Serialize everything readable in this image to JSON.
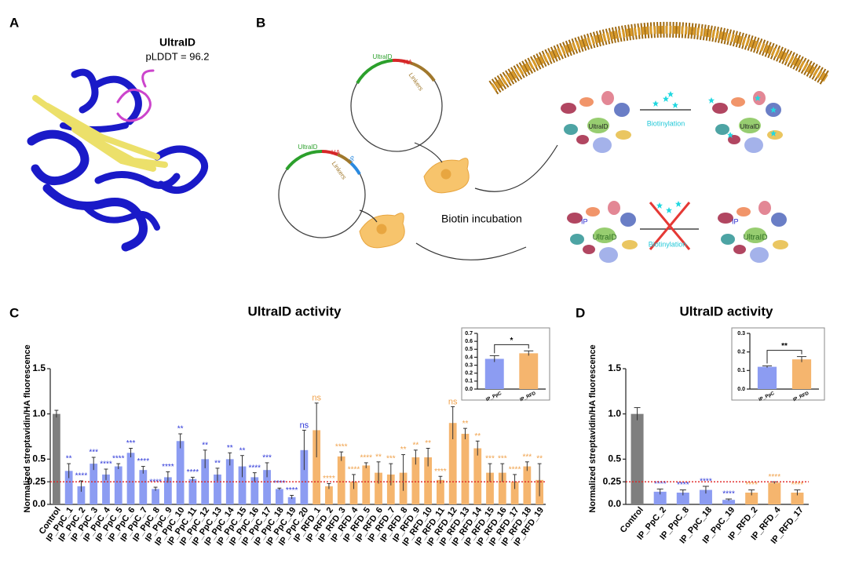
{
  "panels": {
    "A": {
      "letter": "A",
      "protein": "UltraID",
      "plddt": "pLDDT = 96.2"
    },
    "B": {
      "letter": "B",
      "plasmid1": {
        "gene": "UltraID",
        "tag": "HA",
        "linker": "Linkers"
      },
      "plasmid2": {
        "gene": "UltraID",
        "tag": "HA",
        "linker": "Linkers",
        "ip": "IP"
      },
      "incubation": "Biotin incubation",
      "top": {
        "label": "Biotinylation",
        "bait": "UltraID",
        "bait_after": "UltraID"
      },
      "bottom": {
        "label": "Biotinylation",
        "bait": "UltraID",
        "ip": "IP",
        "bait_after": "UltraID",
        "ip_after": "IP"
      }
    },
    "C": {
      "letter": "C"
    },
    "D": {
      "letter": "D"
    }
  },
  "chart_data": [
    {
      "type": "bar",
      "title": "UltraID activity",
      "y_label": "Normalized streptavidin/HA fluorescence",
      "categories": [
        "Control",
        "IP_PpC_1",
        "IP_PpC_2",
        "IP_PpC_3",
        "IP_PpC_4",
        "IP_PpC_5",
        "IP_PpC_6",
        "IP_PpC_7",
        "IP_PpC_8",
        "IP_PpC_9",
        "IP_PpC_10",
        "IP_PpC_11",
        "IP_PpC_12",
        "IP_PpC_13",
        "IP_PpC_14",
        "IP_PpC_15",
        "IP_PpC_16",
        "IP_PpC_17",
        "IP_PpC_18",
        "IP_PpC_19",
        "IP_PpC_20",
        "IP_RFD_1",
        "IP_RFD_2",
        "IP_RFD_3",
        "IP_RFD_4",
        "IP_RFD_5",
        "IP_RFD_6",
        "IP_RFD_7",
        "IP_RFD_8",
        "IP_RFD_9",
        "IP_RFD_10",
        "IP_RFD_11",
        "IP_RFD_12",
        "IP_RFD_13",
        "IP_RFD_14",
        "IP_RFD_15",
        "IP_RFD_16",
        "IP_RFD_17",
        "IP_RFD_18",
        "IP_RFD_19"
      ],
      "values": [
        1.0,
        0.37,
        0.2,
        0.45,
        0.33,
        0.42,
        0.57,
        0.38,
        0.17,
        0.3,
        0.7,
        0.28,
        0.5,
        0.33,
        0.5,
        0.42,
        0.3,
        0.38,
        0.17,
        0.08,
        0.6,
        0.82,
        0.2,
        0.53,
        0.25,
        0.43,
        0.35,
        0.33,
        0.35,
        0.52,
        0.52,
        0.27,
        0.9,
        0.78,
        0.62,
        0.35,
        0.35,
        0.25,
        0.42,
        0.27
      ],
      "errors": [
        0.04,
        0.08,
        0.06,
        0.07,
        0.06,
        0.03,
        0.05,
        0.04,
        0.02,
        0.06,
        0.08,
        0.02,
        0.1,
        0.07,
        0.07,
        0.12,
        0.05,
        0.08,
        0.01,
        0.02,
        0.22,
        0.3,
        0.03,
        0.05,
        0.08,
        0.03,
        0.12,
        0.12,
        0.2,
        0.08,
        0.1,
        0.04,
        0.18,
        0.06,
        0.08,
        0.1,
        0.1,
        0.08,
        0.05,
        0.18
      ],
      "annotations": [
        null,
        "**",
        "****",
        "***",
        "****",
        "****",
        "***",
        "****",
        "****",
        "****",
        "**",
        "****",
        "**",
        "**",
        "**",
        "**",
        "****",
        "***",
        "****",
        "****",
        "ns",
        "ns",
        "****",
        "****",
        "****",
        "****",
        "**",
        "***",
        "**",
        "**",
        "**",
        "****",
        "ns",
        "**",
        "**",
        "***",
        "***",
        "****",
        "***",
        "**"
      ],
      "colors": [
        "#7f7f7f",
        "#8c9cf2",
        "#8c9cf2",
        "#8c9cf2",
        "#8c9cf2",
        "#8c9cf2",
        "#8c9cf2",
        "#8c9cf2",
        "#8c9cf2",
        "#8c9cf2",
        "#8c9cf2",
        "#8c9cf2",
        "#8c9cf2",
        "#8c9cf2",
        "#8c9cf2",
        "#8c9cf2",
        "#8c9cf2",
        "#8c9cf2",
        "#8c9cf2",
        "#8c9cf2",
        "#8c9cf2",
        "#f5b56e",
        "#f5b56e",
        "#f5b56e",
        "#f5b56e",
        "#f5b56e",
        "#f5b56e",
        "#f5b56e",
        "#f5b56e",
        "#f5b56e",
        "#f5b56e",
        "#f5b56e",
        "#f5b56e",
        "#f5b56e",
        "#f5b56e",
        "#f5b56e",
        "#f5b56e",
        "#f5b56e",
        "#f5b56e",
        "#f5b56e"
      ],
      "annotation_colors": [
        null,
        "#2b35d8",
        "#2b35d8",
        "#2b35d8",
        "#2b35d8",
        "#2b35d8",
        "#2b35d8",
        "#2b35d8",
        "#2b35d8",
        "#2b35d8",
        "#2b35d8",
        "#2b35d8",
        "#2b35d8",
        "#2b35d8",
        "#2b35d8",
        "#2b35d8",
        "#2b35d8",
        "#2b35d8",
        "#2b35d8",
        "#2b35d8",
        "#2b35d8",
        "#f0a14a",
        "#f0a14a",
        "#f0a14a",
        "#f0a14a",
        "#f0a14a",
        "#f0a14a",
        "#f0a14a",
        "#f0a14a",
        "#f0a14a",
        "#f0a14a",
        "#f0a14a",
        "#f0a14a",
        "#f0a14a",
        "#f0a14a",
        "#f0a14a",
        "#f0a14a",
        "#f0a14a",
        "#f0a14a",
        "#f0a14a"
      ],
      "reference_line": {
        "value": 0.25,
        "color": "#e02020"
      },
      "ylim": [
        0,
        1.5
      ],
      "yticks": [
        {
          "value": 0,
          "label": "0.0"
        },
        0.25,
        0.5,
        {
          "value": 1,
          "label": "1.0"
        },
        1.5
      ]
    },
    {
      "type": "bar",
      "categories": [
        "IP_PpC",
        "IP_RFD"
      ],
      "values": [
        0.38,
        0.45
      ],
      "errors": [
        0.04,
        0.03
      ],
      "colors": [
        "#8c9cf2",
        "#f5b56e"
      ],
      "comparison": "*",
      "ylim": [
        0,
        0.7
      ],
      "yticks": [
        {
          "value": 0,
          "label": "0.0"
        },
        0.1,
        0.2,
        0.3,
        0.4,
        0.5,
        0.6,
        0.7
      ]
    },
    {
      "type": "bar",
      "title": "UltraID activity",
      "y_label": "Normalized streptavidin/HA fluorescence",
      "categories": [
        "Control",
        "IP_PpC_2",
        "IP_PpC_8",
        "IP_PpC_18",
        "IP_PpC_19",
        "IP_RFD_2",
        "IP_RFD_4",
        "IP_RFD_17"
      ],
      "values": [
        1.0,
        0.14,
        0.13,
        0.16,
        0.05,
        0.13,
        0.24,
        0.13
      ],
      "errors": [
        0.07,
        0.03,
        0.03,
        0.04,
        0.01,
        0.03,
        0.01,
        0.03
      ],
      "annotations": [
        null,
        "****",
        "****",
        "****",
        "****",
        "****",
        "****",
        "****"
      ],
      "colors": [
        "#7f7f7f",
        "#8c9cf2",
        "#8c9cf2",
        "#8c9cf2",
        "#8c9cf2",
        "#f5b56e",
        "#f5b56e",
        "#f5b56e"
      ],
      "annotation_colors": [
        null,
        "#2b35d8",
        "#2b35d8",
        "#2b35d8",
        "#2b35d8",
        "#f0a14a",
        "#f0a14a",
        "#f0a14a"
      ],
      "reference_line": {
        "value": 0.25,
        "color": "#e02020"
      },
      "ylim": [
        0,
        1.5
      ],
      "yticks": [
        {
          "value": 0,
          "label": "0.0"
        },
        0.25,
        0.5,
        {
          "value": 1,
          "label": "1.0"
        },
        1.5
      ]
    },
    {
      "type": "bar",
      "categories": [
        "IP_PpC",
        "IP_RFD"
      ],
      "values": [
        0.12,
        0.16
      ],
      "errors": [
        0.005,
        0.015
      ],
      "colors": [
        "#8c9cf2",
        "#f5b56e"
      ],
      "comparison": "**",
      "ylim": [
        0,
        0.3
      ],
      "yticks": [
        {
          "value": 0,
          "label": "0.0"
        },
        0.1,
        0.2,
        0.3
      ]
    }
  ]
}
